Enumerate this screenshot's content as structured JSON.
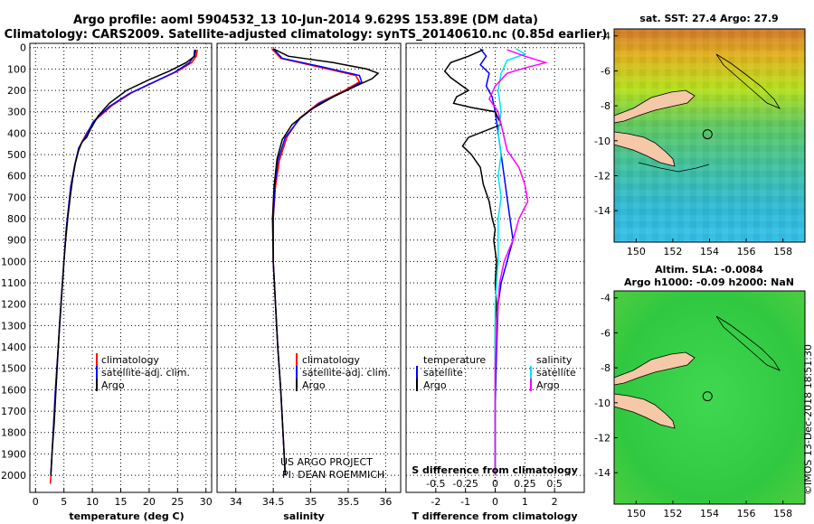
{
  "titles": {
    "line1": "Argo profile: aoml 5904532_13 10-Jun-2014 9.629S 153.89E (DM data)",
    "line2": "Climatology: CARS2009. Satellite-adjusted climatology: synTS_20140610.nc (0.85d earlier)"
  },
  "colors": {
    "clim": "#ff0000",
    "sat": "#0000ff",
    "argo": "#000000",
    "sat_s": "#00e5ee",
    "clim_s": "#ff00ff",
    "land": "#f5c8a8"
  },
  "chart_data": [
    {
      "type": "line",
      "id": "temperature",
      "xlabel": "temperature (deg C)",
      "xlim": [
        -1,
        31
      ],
      "xticks": [
        0,
        5,
        10,
        15,
        20,
        25,
        30
      ],
      "ylim": [
        2080,
        -20
      ],
      "yticks": [
        0,
        100,
        200,
        300,
        400,
        500,
        600,
        700,
        800,
        900,
        1000,
        1100,
        1200,
        1300,
        1400,
        1500,
        1600,
        1700,
        1800,
        1900,
        2000
      ],
      "legend": {
        "position": "lower-right",
        "entries": [
          "climatology",
          "satellite-adj. clim.",
          "Argo"
        ]
      },
      "series": [
        {
          "name": "climatology",
          "color": "red",
          "points": [
            [
              28.5,
              10
            ],
            [
              28.3,
              40
            ],
            [
              27.5,
              70
            ],
            [
              25,
              110
            ],
            [
              21,
              160
            ],
            [
              17,
              210
            ],
            [
              13.5,
              270
            ],
            [
              10.5,
              340
            ],
            [
              9,
              400
            ],
            [
              7.6,
              470
            ],
            [
              6.9,
              550
            ],
            [
              6.2,
              650
            ],
            [
              5.8,
              750
            ],
            [
              5.4,
              850
            ],
            [
              5.0,
              1000
            ],
            [
              4.5,
              1200
            ],
            [
              4.0,
              1400
            ],
            [
              3.5,
              1600
            ],
            [
              3.1,
              1800
            ],
            [
              2.7,
              2000
            ],
            [
              2.6,
              2040
            ]
          ]
        },
        {
          "name": "satellite-adj. clim.",
          "color": "blue",
          "points": [
            [
              28.0,
              10
            ],
            [
              27.9,
              40
            ],
            [
              27.1,
              70
            ],
            [
              24.5,
              115
            ],
            [
              20.5,
              165
            ],
            [
              16.5,
              215
            ],
            [
              13,
              275
            ],
            [
              10.2,
              345
            ],
            [
              8.9,
              410
            ],
            [
              7.6,
              470
            ],
            [
              6.9,
              550
            ],
            [
              6.2,
              650
            ],
            [
              5.8,
              750
            ],
            [
              5.4,
              850
            ],
            [
              5.0,
              1000
            ],
            [
              4.5,
              1200
            ],
            [
              4.0,
              1400
            ],
            [
              3.5,
              1600
            ],
            [
              3.1,
              1800
            ],
            [
              2.7,
              2000
            ]
          ]
        },
        {
          "name": "Argo",
          "color": "black",
          "points": [
            [
              28.2,
              10
            ],
            [
              28.0,
              40
            ],
            [
              26.5,
              70
            ],
            [
              23.5,
              110
            ],
            [
              20,
              150
            ],
            [
              16,
              200
            ],
            [
              13,
              260
            ],
            [
              11,
              320
            ],
            [
              9.7,
              380
            ],
            [
              9,
              420
            ],
            [
              8.2,
              440
            ],
            [
              7.6,
              480
            ],
            [
              7,
              540
            ],
            [
              6.5,
              620
            ],
            [
              6.1,
              700
            ],
            [
              5.7,
              790
            ],
            [
              5.3,
              900
            ],
            [
              5.0,
              1000
            ],
            [
              4.6,
              1150
            ],
            [
              4.2,
              1300
            ],
            [
              3.9,
              1450
            ],
            [
              3.6,
              1600
            ],
            [
              3.3,
              1750
            ],
            [
              2.9,
              1900
            ],
            [
              2.7,
              2000
            ]
          ]
        }
      ]
    },
    {
      "type": "line",
      "id": "salinity",
      "xlabel": "salinity",
      "xlim": [
        33.75,
        36.2
      ],
      "xticks": [
        34,
        34.5,
        35,
        35.5,
        36
      ],
      "ylim": [
        2080,
        -20
      ],
      "legend": {
        "position": "lower-right",
        "entries": [
          "climatology",
          "satellite-adj. clim.",
          "Argo"
        ]
      },
      "annotations": [
        "US ARGO PROJECT",
        "PI: DEAN ROEMMICH"
      ],
      "series": [
        {
          "name": "climatology",
          "color": "red",
          "points": [
            [
              34.48,
              5
            ],
            [
              34.6,
              50
            ],
            [
              35.1,
              90
            ],
            [
              35.6,
              130
            ],
            [
              35.65,
              160
            ],
            [
              35.45,
              200
            ],
            [
              35.1,
              260
            ],
            [
              34.85,
              330
            ],
            [
              34.68,
              420
            ],
            [
              34.58,
              530
            ],
            [
              34.53,
              650
            ],
            [
              34.5,
              800
            ],
            [
              34.5,
              1000
            ],
            [
              34.53,
              1200
            ],
            [
              34.56,
              1400
            ],
            [
              34.6,
              1600
            ],
            [
              34.63,
              1800
            ],
            [
              34.66,
              2000
            ]
          ]
        },
        {
          "name": "satellite-adj. clim.",
          "color": "blue",
          "points": [
            [
              34.5,
              5
            ],
            [
              34.62,
              50
            ],
            [
              35.15,
              90
            ],
            [
              35.65,
              130
            ],
            [
              35.68,
              160
            ],
            [
              35.48,
              200
            ],
            [
              35.12,
              260
            ],
            [
              34.86,
              330
            ],
            [
              34.66,
              420
            ],
            [
              34.56,
              530
            ],
            [
              34.52,
              650
            ],
            [
              34.5,
              800
            ],
            [
              34.5,
              1000
            ],
            [
              34.53,
              1200
            ],
            [
              34.56,
              1400
            ],
            [
              34.6,
              1600
            ],
            [
              34.63,
              1800
            ],
            [
              34.66,
              2000
            ]
          ]
        },
        {
          "name": "Argo",
          "color": "black",
          "points": [
            [
              34.5,
              5
            ],
            [
              34.7,
              40
            ],
            [
              35.3,
              70
            ],
            [
              35.75,
              100
            ],
            [
              35.9,
              120
            ],
            [
              35.82,
              145
            ],
            [
              35.6,
              180
            ],
            [
              35.3,
              230
            ],
            [
              35.0,
              290
            ],
            [
              34.75,
              360
            ],
            [
              34.62,
              430
            ],
            [
              34.55,
              520
            ],
            [
              34.51,
              650
            ],
            [
              34.49,
              800
            ],
            [
              34.5,
              1000
            ],
            [
              34.53,
              1200
            ],
            [
              34.56,
              1400
            ],
            [
              34.6,
              1600
            ],
            [
              34.63,
              1800
            ],
            [
              34.66,
              2000
            ]
          ]
        }
      ]
    },
    {
      "type": "line",
      "id": "difference",
      "xlabel": "T difference from climatology",
      "xlabel2": "S difference from climatology",
      "xlim": [
        -3,
        3
      ],
      "xticks": [
        -2,
        -1,
        0,
        1,
        2
      ],
      "xticks2": [
        [
          "-0.5",
          -2
        ],
        [
          "-0.25",
          -1
        ],
        [
          "0",
          0
        ],
        [
          "0.25",
          1
        ],
        [
          "0.5",
          2
        ]
      ],
      "ylim": [
        2080,
        -20
      ],
      "legend": {
        "position": "lower",
        "left_title": "temperature",
        "right_title": "salinity",
        "entries": [
          "satellite",
          "Argo"
        ]
      },
      "series": [
        {
          "name": "T sat",
          "color": "blue",
          "points": [
            [
              -0.5,
              5
            ],
            [
              -0.3,
              40
            ],
            [
              -0.5,
              80
            ],
            [
              -0.2,
              120
            ],
            [
              -0.3,
              180
            ],
            [
              -0.1,
              230
            ],
            [
              0.0,
              300
            ],
            [
              0.1,
              400
            ],
            [
              0.2,
              500
            ],
            [
              0.3,
              600
            ],
            [
              0.4,
              700
            ],
            [
              0.5,
              800
            ],
            [
              0.6,
              900
            ],
            [
              0.4,
              1000
            ],
            [
              0.2,
              1100
            ],
            [
              0.1,
              1200
            ],
            [
              0.05,
              1400
            ],
            [
              0.0,
              1700
            ],
            [
              0.0,
              2000
            ]
          ]
        },
        {
          "name": "T Argo",
          "color": "black",
          "points": [
            [
              -0.4,
              10
            ],
            [
              -0.9,
              40
            ],
            [
              -1.5,
              70
            ],
            [
              -1.7,
              110
            ],
            [
              -1.5,
              140
            ],
            [
              -1.2,
              170
            ],
            [
              -0.9,
              200
            ],
            [
              -1.3,
              230
            ],
            [
              -1.4,
              260
            ],
            [
              -0.8,
              280
            ],
            [
              0.0,
              300
            ],
            [
              0.2,
              360
            ],
            [
              -0.9,
              420
            ],
            [
              -1.1,
              460
            ],
            [
              -0.8,
              500
            ],
            [
              -0.5,
              560
            ],
            [
              -0.4,
              640
            ],
            [
              -0.2,
              720
            ],
            [
              -0.1,
              800
            ],
            [
              0.0,
              850
            ],
            [
              -0.05,
              900
            ],
            [
              0.05,
              1000
            ],
            [
              0.0,
              1100
            ],
            [
              0.05,
              1200
            ],
            [
              0.0,
              1300
            ],
            [
              0.0,
              1500
            ],
            [
              0.0,
              1800
            ],
            [
              0.0,
              2000
            ]
          ]
        },
        {
          "name": "S sat",
          "color": "cyan",
          "points": [
            [
              0.7,
              5
            ],
            [
              1.0,
              30
            ],
            [
              0.4,
              60
            ],
            [
              0.2,
              120
            ],
            [
              0.1,
              200
            ],
            [
              0.2,
              300
            ],
            [
              0.1,
              400
            ],
            [
              0.2,
              500
            ],
            [
              0.1,
              600
            ],
            [
              0.2,
              700
            ],
            [
              0.1,
              800
            ],
            [
              0.1,
              1000
            ],
            [
              0.0,
              1200
            ],
            [
              0.0,
              1500
            ],
            [
              0.0,
              2000
            ]
          ]
        },
        {
          "name": "S Argo",
          "color": "magenta",
          "points": [
            [
              0.4,
              10
            ],
            [
              1.0,
              40
            ],
            [
              1.7,
              70
            ],
            [
              1.0,
              95
            ],
            [
              0.4,
              120
            ],
            [
              0.0,
              180
            ],
            [
              -0.2,
              240
            ],
            [
              0.1,
              300
            ],
            [
              0.2,
              360
            ],
            [
              0.3,
              420
            ],
            [
              0.4,
              480
            ],
            [
              0.8,
              560
            ],
            [
              1.0,
              640
            ],
            [
              1.1,
              720
            ],
            [
              0.8,
              800
            ],
            [
              0.6,
              900
            ],
            [
              0.3,
              1000
            ],
            [
              0.15,
              1100
            ],
            [
              0.05,
              1300
            ],
            [
              0.0,
              1500
            ],
            [
              0.0,
              2000
            ]
          ]
        }
      ]
    },
    {
      "type": "heatmap",
      "id": "sst_map",
      "title": "sat. SST: 27.4  Argo: 27.9",
      "xlim": [
        148.8,
        159.2
      ],
      "ylim": [
        -15.8,
        -3.6
      ],
      "xticks": [
        150,
        152,
        154,
        156,
        158
      ],
      "yticks": [
        -4,
        -6,
        -8,
        -10,
        -12,
        -14
      ],
      "marker": [
        153.89,
        -9.629
      ]
    },
    {
      "type": "heatmap",
      "id": "sla_map",
      "title": "Altim. SLA: -0.0084",
      "subtitle": "Argo h1000: -0.09 h2000: NaN",
      "xlim": [
        148.8,
        159.2
      ],
      "ylim": [
        -15.8,
        -3.6
      ],
      "xticks": [
        150,
        152,
        154,
        156,
        158
      ],
      "yticks": [
        -4,
        -6,
        -8,
        -10,
        -12,
        -14
      ],
      "marker": [
        153.89,
        -9.629
      ]
    }
  ],
  "footer": {
    "stamp": "©IMOS 13-Dec-2018 18:51:30"
  }
}
